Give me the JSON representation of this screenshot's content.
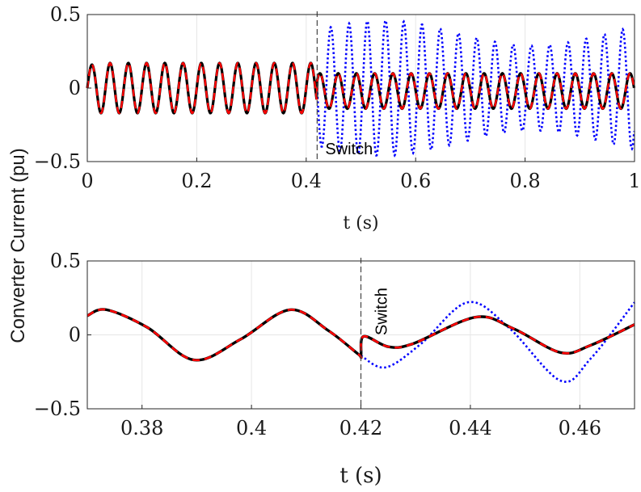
{
  "figure": {
    "ylabel": "Converter Current (pu)"
  },
  "chart_data": [
    {
      "type": "line",
      "xlabel": "t (s)",
      "ylabel": "Converter Current (pu)",
      "xlim": [
        0,
        1
      ],
      "ylim": [
        -0.5,
        0.5
      ],
      "xticks": [
        0,
        0.2,
        0.4,
        0.6,
        0.8,
        1
      ],
      "xtick_labels": [
        "0",
        "0.2",
        "0.4",
        "0.6",
        "0.8",
        "1"
      ],
      "yticks": [
        -0.5,
        0,
        0.5
      ],
      "ytick_labels": [
        "−0.5",
        "0",
        "0.5"
      ],
      "grid": true,
      "switch_time": 0.42,
      "annotation": "Switch",
      "frequency_hz": 30,
      "series": [
        {
          "name": "black-solid",
          "color": "#000000",
          "style": "solid",
          "amp_before": 0.17,
          "amp_after": 0.12,
          "offset": -0.02
        },
        {
          "name": "red-dashed",
          "color": "#ff0000",
          "style": "dashed",
          "amp_before": 0.17,
          "amp_after": 0.12,
          "offset": -0.02
        },
        {
          "name": "blue-dotted",
          "color": "#0000ff",
          "style": "dotted",
          "amp_after": 0.27,
          "amp_after_max": 0.46
        }
      ]
    },
    {
      "type": "line",
      "xlabel": "t (s)",
      "ylabel": "Converter Current (pu)",
      "xlim": [
        0.37,
        0.47
      ],
      "ylim": [
        -0.5,
        0.5
      ],
      "xticks": [
        0.38,
        0.4,
        0.42,
        0.44,
        0.46
      ],
      "xtick_labels": [
        "0.38",
        "0.4",
        "0.42",
        "0.44",
        "0.46"
      ],
      "yticks": [
        -0.5,
        0,
        0.5
      ],
      "ytick_labels": [
        "−0.5",
        "0",
        "0.5"
      ],
      "grid": true,
      "switch_time": 0.42,
      "annotation": "Switch",
      "series": [
        {
          "name": "black-solid",
          "color": "#000000",
          "style": "solid",
          "points": [
            [
              0.37,
              0.13
            ],
            [
              0.3735,
              0.17
            ],
            [
              0.381,
              0.05
            ],
            [
              0.3895,
              -0.17
            ],
            [
              0.398,
              -0.03
            ],
            [
              0.407,
              0.17
            ],
            [
              0.414,
              0.03
            ],
            [
              0.4195,
              -0.13
            ],
            [
              0.42,
              -0.14
            ],
            [
              0.4205,
              -0.01
            ],
            [
              0.425,
              -0.08
            ],
            [
              0.4295,
              -0.06
            ],
            [
              0.441,
              0.12
            ],
            [
              0.448,
              0.04
            ],
            [
              0.4565,
              -0.12
            ],
            [
              0.462,
              -0.07
            ],
            [
              0.47,
              0.07
            ]
          ]
        },
        {
          "name": "red-dashed",
          "color": "#ff0000",
          "style": "dashed",
          "points": [
            [
              0.37,
              0.13
            ],
            [
              0.3735,
              0.17
            ],
            [
              0.381,
              0.05
            ],
            [
              0.3895,
              -0.17
            ],
            [
              0.398,
              -0.03
            ],
            [
              0.407,
              0.17
            ],
            [
              0.414,
              0.03
            ],
            [
              0.4195,
              -0.13
            ],
            [
              0.42,
              -0.14
            ],
            [
              0.4205,
              -0.01
            ],
            [
              0.425,
              -0.08
            ],
            [
              0.4295,
              -0.06
            ],
            [
              0.441,
              0.12
            ],
            [
              0.448,
              0.04
            ],
            [
              0.4565,
              -0.12
            ],
            [
              0.462,
              -0.07
            ],
            [
              0.47,
              0.07
            ]
          ]
        },
        {
          "name": "blue-dotted",
          "color": "#0000ff",
          "style": "dotted",
          "points": [
            [
              0.42,
              -0.14
            ],
            [
              0.4245,
              -0.22
            ],
            [
              0.431,
              -0.06
            ],
            [
              0.4395,
              0.22
            ],
            [
              0.447,
              0.05
            ],
            [
              0.4565,
              -0.31
            ],
            [
              0.462,
              -0.16
            ],
            [
              0.47,
              0.22
            ]
          ]
        }
      ]
    }
  ]
}
